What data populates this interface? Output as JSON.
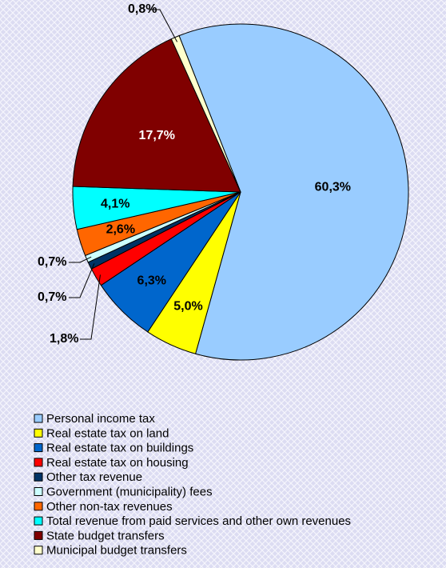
{
  "chart_data": {
    "type": "pie",
    "categories": [
      "Personal income tax",
      "Real estate tax on land",
      "Real estate tax on buildings",
      "Real estate tax on housing",
      "Other tax revenue",
      "Government (municipality) fees",
      "Other non-tax revenues",
      "Total revenue from paid services and other own revenues",
      "State budget transfers",
      "Municipal budget transfers"
    ],
    "values": [
      60.3,
      5.0,
      6.3,
      1.8,
      0.7,
      0.7,
      2.6,
      4.1,
      17.7,
      0.8
    ],
    "value_labels": [
      "60,3%",
      "5,0%",
      "6,3%",
      "1,8%",
      "0,7%",
      "0,7%",
      "2,6%",
      "4,1%",
      "17,7%",
      "0,8%"
    ],
    "colors": [
      "#99ccff",
      "#ffff00",
      "#0066cc",
      "#ff0000",
      "#003366",
      "#ccffff",
      "#ff6600",
      "#00ffff",
      "#800000",
      "#ffffcc"
    ],
    "legend": "bottom-left"
  }
}
